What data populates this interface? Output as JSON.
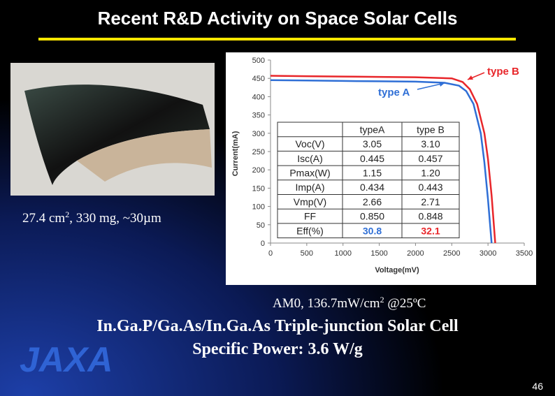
{
  "title": "Recent R&D Activity on Space Solar Cells",
  "caption": {
    "parts": [
      "27.4 cm",
      "2",
      ", 330 mg, ~30µm"
    ]
  },
  "condition": {
    "parts": [
      "AM0, 136.7mW/cm",
      "2",
      " @25ºC"
    ]
  },
  "headline": [
    "In.Ga.P/Ga.As/In.Ga.As Triple-junction Solar Cell",
    "Specific Power: 3.6 W/g"
  ],
  "logo": "JAXA",
  "page_number": "46",
  "chart_data": {
    "type": "line",
    "x_label": "Voltage(mV)",
    "y_label": "Current(mA)",
    "xlim": [
      0,
      3500
    ],
    "xticks": [
      0,
      500,
      1000,
      1500,
      2000,
      2500,
      3000,
      3500
    ],
    "ylim": [
      0,
      500
    ],
    "yticks": [
      0,
      50,
      100,
      150,
      200,
      250,
      300,
      350,
      400,
      450,
      500
    ],
    "series": [
      {
        "name": "type A",
        "color": "#2f6fd6",
        "x": [
          0,
          500,
          1000,
          1500,
          2000,
          2400,
          2600,
          2700,
          2800,
          2900,
          2950,
          3000,
          3050
        ],
        "values": [
          445,
          444,
          443,
          442,
          441,
          438,
          430,
          415,
          380,
          300,
          220,
          120,
          0
        ]
      },
      {
        "name": "type B",
        "color": "#e8262a",
        "x": [
          0,
          500,
          1000,
          1500,
          2000,
          2500,
          2650,
          2750,
          2850,
          2950,
          3000,
          3050,
          3100
        ],
        "values": [
          457,
          456,
          455,
          454,
          453,
          450,
          440,
          420,
          380,
          300,
          230,
          130,
          0
        ]
      }
    ]
  },
  "table": {
    "header": [
      "typeA",
      "type B"
    ],
    "rows": [
      [
        "Voc(V)",
        "3.05",
        "3.10"
      ],
      [
        "Isc(A)",
        "0.445",
        "0.457"
      ],
      [
        "Pmax(W)",
        "1.15",
        "1.20"
      ],
      [
        "Imp(A)",
        "0.434",
        "0.443"
      ],
      [
        "Vmp(V)",
        "2.66",
        "2.71"
      ],
      [
        "FF",
        "0.850",
        "0.848"
      ],
      [
        "Eff(%)",
        "30.8",
        "32.1"
      ]
    ]
  }
}
